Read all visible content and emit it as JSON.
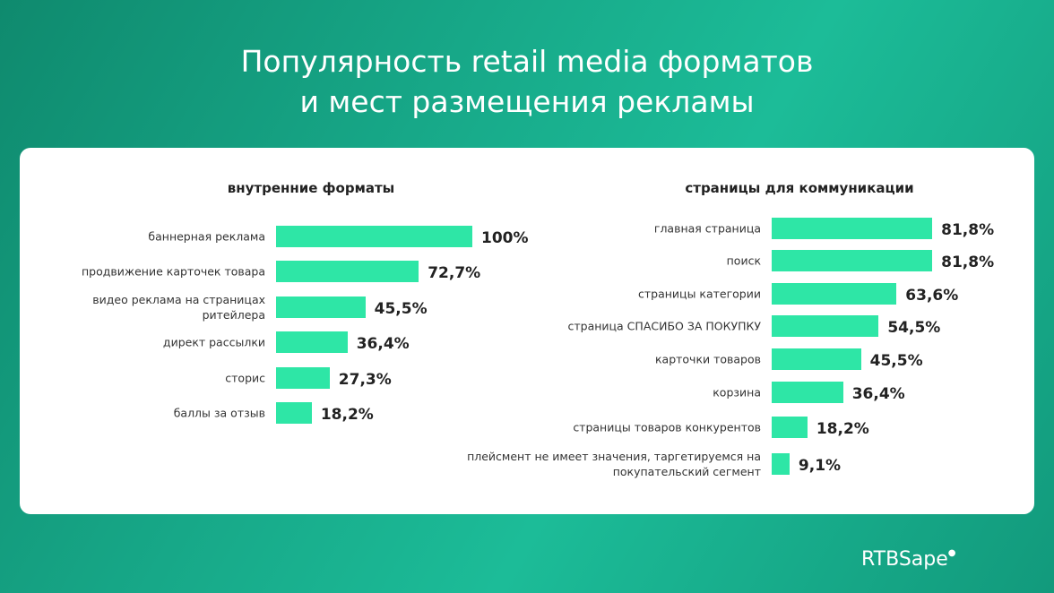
{
  "title_line1": "Популярность retail media форматов",
  "title_line2": "и мест размещения рекламы",
  "logo": "RTBSape",
  "colors": {
    "bar": "#2ee6a6",
    "background": "#17a888"
  },
  "chart_data": [
    {
      "type": "bar",
      "orientation": "horizontal",
      "title": "внутренние форматы",
      "xlim": [
        0,
        100
      ],
      "categories": [
        "баннерная реклама",
        "продвижение карточек товара",
        "видео реклама на страницах ритейлера",
        "директ рассылки",
        "сторис",
        "баллы за отзыв"
      ],
      "values": [
        100,
        72.7,
        45.5,
        36.4,
        27.3,
        18.2
      ],
      "labels": [
        "100%",
        "72,7%",
        "45,5%",
        "36,4%",
        "27,3%",
        "18,2%"
      ]
    },
    {
      "type": "bar",
      "orientation": "horizontal",
      "title": "страницы для коммуникации",
      "xlim": [
        0,
        100
      ],
      "categories": [
        "главная страница",
        "поиск",
        "страницы категории",
        "страница СПАСИБО ЗА ПОКУПКУ",
        "карточки товаров",
        "корзина",
        "страницы товаров конкурентов",
        "плейсмент не имеет значения, таргетируемся на покупательский сегмент"
      ],
      "values": [
        81.8,
        81.8,
        63.6,
        54.5,
        45.5,
        36.4,
        18.2,
        9.1
      ],
      "labels": [
        "81,8%",
        "81,8%",
        "63,6%",
        "54,5%",
        "45,5%",
        "36,4%",
        "18,2%",
        "9,1%"
      ]
    }
  ]
}
